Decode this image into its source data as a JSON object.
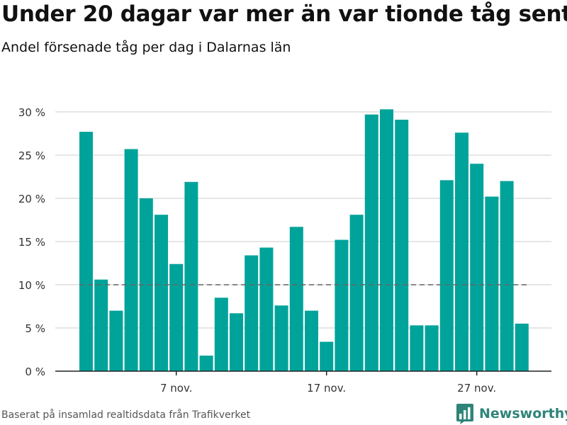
{
  "title": "Under 20 dagar var mer än var tionde tåg sent",
  "subtitle": "Andel försenade tåg per dag i Dalarnas län",
  "source": "Baserat på insamlad realtidsdata från Trafikverket",
  "brand": {
    "name": "Newsworthy",
    "icon": "bar-chart-logo-icon"
  },
  "colors": {
    "bar": "#00a39a",
    "reference_line": "#666666",
    "grid": "#dddddd",
    "axis": "#222222",
    "brand": "#2f8479"
  },
  "chart_data": {
    "type": "bar",
    "title": "Under 20 dagar var mer än var tionde tåg sent",
    "subtitle": "Andel försenade tåg per dag i Dalarnas län",
    "xlabel": "",
    "ylabel": "",
    "x": [
      "2019-11-01",
      "2019-11-02",
      "2019-11-03",
      "2019-11-04",
      "2019-11-05",
      "2019-11-06",
      "2019-11-07",
      "2019-11-08",
      "2019-11-09",
      "2019-11-10",
      "2019-11-11",
      "2019-11-12",
      "2019-11-13",
      "2019-11-14",
      "2019-11-15",
      "2019-11-16",
      "2019-11-17",
      "2019-11-18",
      "2019-11-19",
      "2019-11-20",
      "2019-11-21",
      "2019-11-22",
      "2019-11-23",
      "2019-11-24",
      "2019-11-25",
      "2019-11-26",
      "2019-11-27",
      "2019-11-28",
      "2019-11-29",
      "2019-11-30"
    ],
    "values": [
      27.7,
      10.6,
      7.0,
      25.7,
      20.0,
      18.1,
      12.4,
      21.9,
      1.8,
      8.5,
      6.7,
      13.4,
      14.3,
      7.6,
      16.7,
      7.0,
      3.4,
      15.2,
      18.1,
      29.7,
      30.3,
      29.1,
      5.3,
      5.3,
      22.1,
      27.6,
      24.0,
      20.2,
      22.0,
      5.5
    ],
    "ylim": [
      0,
      30
    ],
    "yticks": [
      0,
      5,
      10,
      15,
      20,
      25,
      30
    ],
    "ytick_labels": [
      "0 %",
      "5 %",
      "10 %",
      "15 %",
      "20 %",
      "25 %",
      "30 %"
    ],
    "xtick_positions": [
      "2019-11-07",
      "2019-11-17",
      "2019-11-27"
    ],
    "xtick_labels": [
      "7 nov.",
      "17 nov.",
      "27 nov."
    ],
    "reference_line": 10,
    "grid": true,
    "legend": "none"
  }
}
